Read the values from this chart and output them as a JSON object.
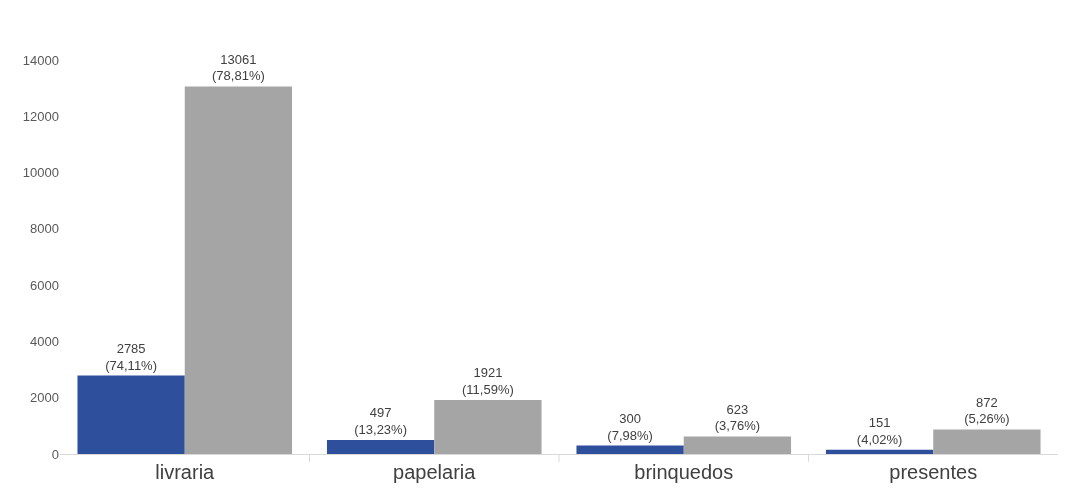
{
  "chart_data": {
    "type": "bar",
    "categories": [
      "livraria",
      "papelaria",
      "brinquedos",
      "presentes"
    ],
    "series": [
      {
        "color": "#2e4f9b",
        "values": [
          2785,
          497,
          300,
          151
        ],
        "value_labels": [
          "2785\n(74,11%)",
          "497\n(13,23%)",
          "300\n(7,98%)",
          "151\n(4,02%)"
        ]
      },
      {
        "color": "#a5a5a5",
        "values": [
          13061,
          1921,
          623,
          872
        ],
        "value_labels": [
          "13061\n(78,81%)",
          "1921\n(11,59%)",
          "623\n(3,76%)",
          "872\n(5,26%)"
        ]
      }
    ],
    "ylim": [
      0,
      14000
    ],
    "yticks": [
      0,
      2000,
      4000,
      6000,
      8000,
      10000,
      12000,
      14000
    ],
    "grid": false,
    "legend": false
  }
}
